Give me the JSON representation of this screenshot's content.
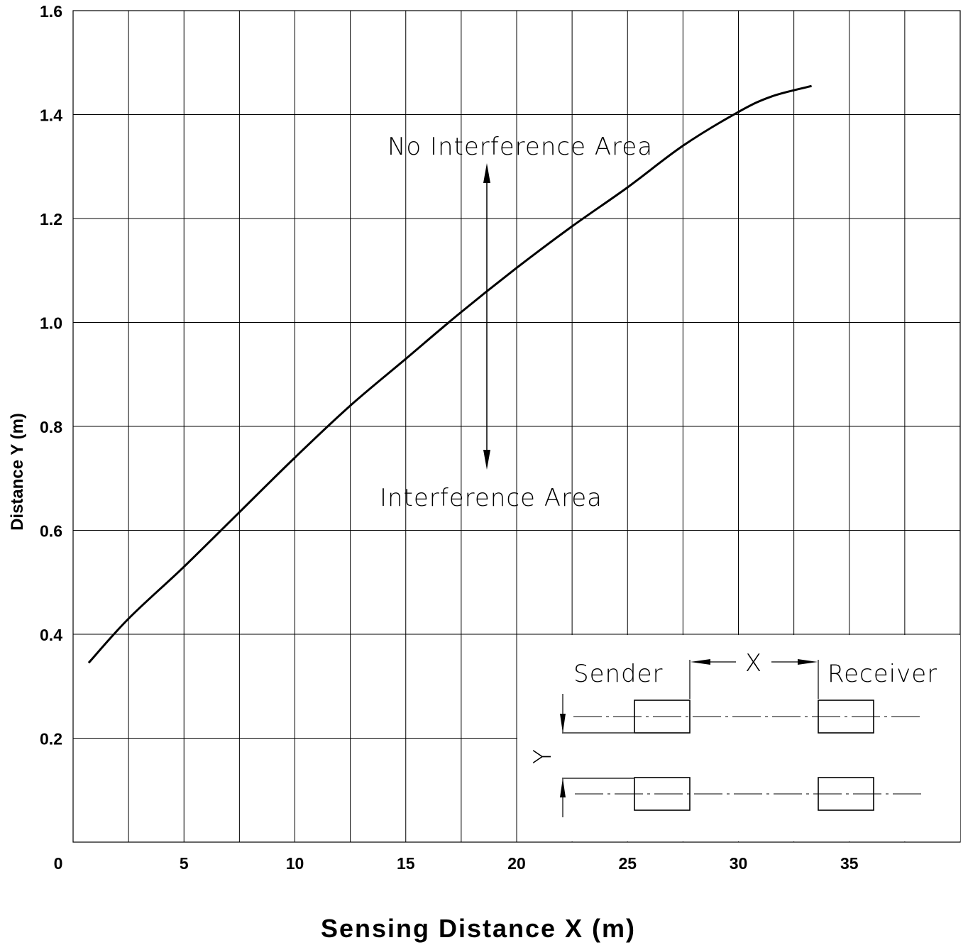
{
  "chart_data": {
    "type": "line",
    "xlabel": "Sensing  Distance  X  (m)",
    "ylabel": "Distance    Y    (m)",
    "xlim": [
      0,
      40
    ],
    "ylim": [
      0,
      1.6
    ],
    "x_ticks": [
      0,
      5,
      10,
      15,
      20,
      25,
      30,
      35
    ],
    "x_tick_labels": [
      "0",
      "5",
      "10",
      "15",
      "20",
      "25",
      "30",
      "35"
    ],
    "y_ticks": [
      0.2,
      0.4,
      0.6,
      0.8,
      1.0,
      1.2,
      1.4,
      1.6
    ],
    "y_tick_labels": [
      "0.2",
      "0.4",
      "0.6",
      "0.8",
      "1.0",
      "1.2",
      "1.4",
      "1.6"
    ],
    "x_grid_step": 2.5,
    "y_grid_step": 0.2,
    "grid": true,
    "series": [
      {
        "x": [
          0.7,
          2.5,
          5.0,
          7.5,
          10.0,
          12.5,
          15.0,
          17.5,
          20.0,
          22.5,
          25.0,
          27.5,
          30.0,
          31.5,
          33.3
        ],
        "y": [
          0.345,
          0.43,
          0.53,
          0.635,
          0.74,
          0.84,
          0.93,
          1.02,
          1.105,
          1.185,
          1.26,
          1.34,
          1.405,
          1.435,
          1.455
        ]
      }
    ],
    "annotations": [
      {
        "text": "No Interference Area"
      },
      {
        "text": "Interference Area"
      }
    ]
  },
  "inset": {
    "sender_label": "Sender",
    "receiver_label": "Receiver",
    "x_label": "X",
    "y_label": "Y"
  }
}
